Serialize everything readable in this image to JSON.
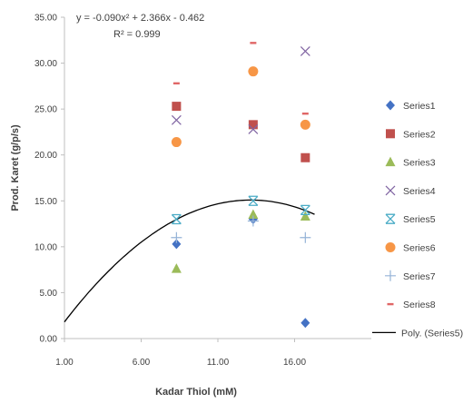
{
  "chart_data": {
    "type": "scatter",
    "xlabel": "Kadar Thiol (mM)",
    "ylabel": "Prod. Karet (g/p/s)",
    "xlim": [
      1.0,
      21.0
    ],
    "ylim": [
      0.0,
      35.0
    ],
    "x_ticks": [
      "1.00",
      "6.00",
      "11.00",
      "16.00"
    ],
    "x_tick_values": [
      1,
      6,
      11,
      16
    ],
    "y_ticks": [
      "0.00",
      "5.00",
      "10.00",
      "15.00",
      "20.00",
      "25.00",
      "30.00",
      "35.00"
    ],
    "y_tick_values": [
      0,
      5,
      10,
      15,
      20,
      25,
      30,
      35
    ],
    "grid": false,
    "legend_position": "right",
    "x": [
      8.3,
      13.3,
      16.7
    ],
    "series": [
      {
        "name": "Series1",
        "values": [
          10.3,
          13.0,
          1.7
        ],
        "marker": "diamond",
        "color": "#4472c4"
      },
      {
        "name": "Series2",
        "values": [
          25.3,
          23.3,
          19.7
        ],
        "marker": "square",
        "color": "#c0504d"
      },
      {
        "name": "Series3",
        "values": [
          7.6,
          13.5,
          13.3
        ],
        "marker": "triangle",
        "color": "#9bbb59"
      },
      {
        "name": "Series4",
        "values": [
          23.8,
          22.8,
          31.3
        ],
        "marker": "x",
        "color": "#8064a2"
      },
      {
        "name": "Series5",
        "values": [
          13.0,
          15.0,
          14.0
        ],
        "marker": "star",
        "color": "#4bacc6"
      },
      {
        "name": "Series6",
        "values": [
          21.4,
          29.1,
          23.3
        ],
        "marker": "circle",
        "color": "#f79646"
      },
      {
        "name": "Series7",
        "values": [
          11.0,
          12.8,
          11.0
        ],
        "marker": "plus",
        "color": "#95b3d7"
      },
      {
        "name": "Series8",
        "values": [
          27.8,
          32.2,
          24.5
        ],
        "marker": "dash",
        "color": "#e06666"
      }
    ],
    "trendline": {
      "name": "Poly. (Series5)",
      "type": "polynomial",
      "coefficients": [
        -0.09,
        2.366,
        -0.462
      ],
      "x_range": [
        1.0,
        17.3
      ],
      "color": "#000000",
      "equation_label": "y = -0.090x² + 2.366x - 0.462",
      "r2_label": "R² = 0.999"
    }
  }
}
